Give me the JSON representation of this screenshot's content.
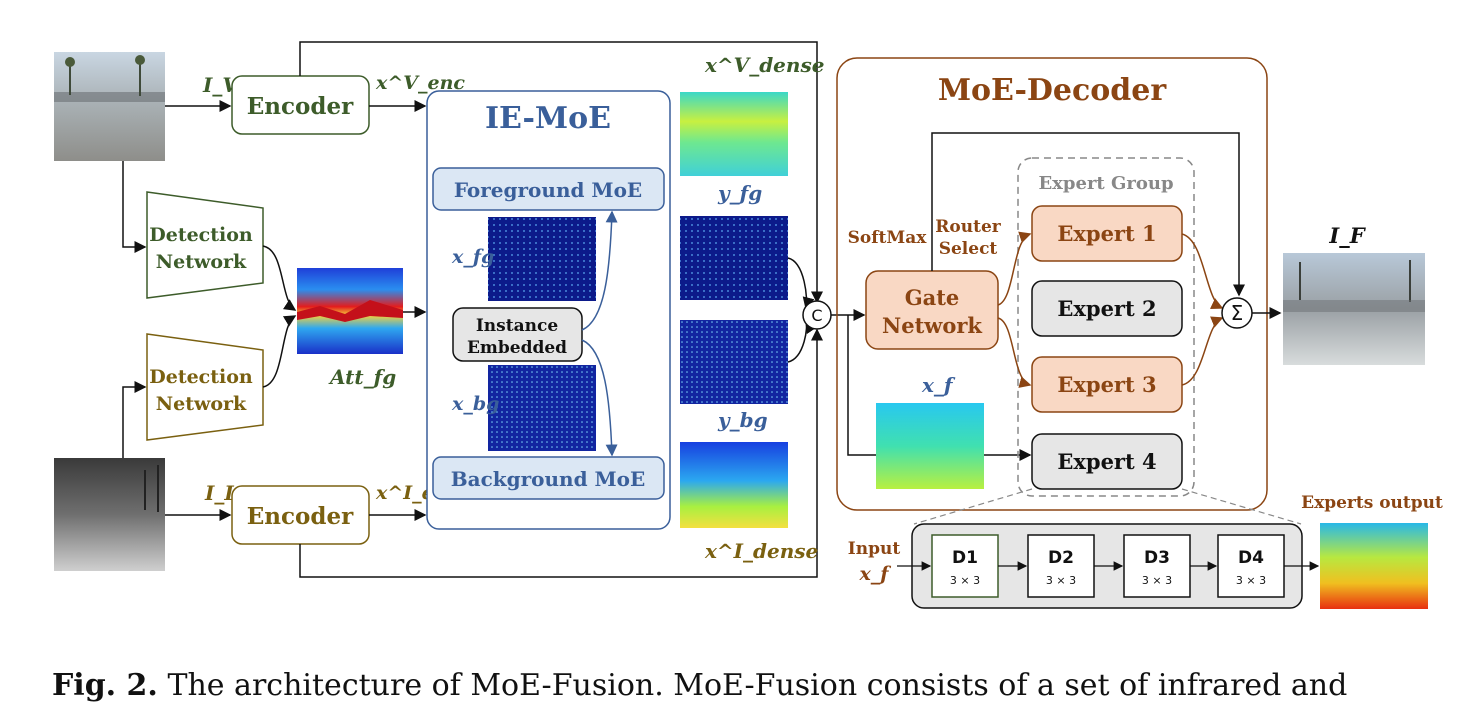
{
  "inputs": {
    "visible_label": "I_V",
    "infrared_label": "I_I",
    "output_label": "I_F"
  },
  "encoders": {
    "visible": "Encoder",
    "infrared": "Encoder",
    "visible_out": "x^V_enc",
    "infrared_out": "x^I_enc"
  },
  "detection": {
    "top_line1": "Detection",
    "top_line2": "Network",
    "bottom_line1": "Detection",
    "bottom_line2": "Network",
    "att_label": "Att_fg"
  },
  "ie_moe": {
    "title": "IE-MoE",
    "foreground": "Foreground MoE",
    "background": "Background MoE",
    "instance_line1": "Instance",
    "instance_line2": "Embedded",
    "x_fg": "x_fg",
    "x_bg": "x_bg"
  },
  "features": {
    "x_dense_v": "x^V_dense",
    "y_fg": "y_fg",
    "y_bg": "y_bg",
    "x_dense_i": "x^I_dense",
    "concat": "C",
    "x_f": "x_f"
  },
  "decoder": {
    "title": "MoE-Decoder",
    "softmax": "SoftMax",
    "router_line1": "Router",
    "router_line2": "Select",
    "gate_line1": "Gate",
    "gate_line2": "Network",
    "expert_group": "Expert Group",
    "experts": [
      "Expert 1",
      "Expert 2",
      "Expert 3",
      "Expert 4"
    ],
    "sum": "Σ"
  },
  "expert_detail": {
    "input_line1": "Input",
    "input_line2": "x_f",
    "blocks": [
      {
        "name": "D1",
        "kernel": "3 × 3"
      },
      {
        "name": "D2",
        "kernel": "3 × 3"
      },
      {
        "name": "D3",
        "kernel": "3 × 3"
      },
      {
        "name": "D4",
        "kernel": "3 × 3"
      }
    ],
    "output_label": "Experts output"
  },
  "caption": {
    "label": "Fig. 2.",
    "text": "The architecture of MoE-Fusion. MoE-Fusion consists of a set of infrared and"
  },
  "colors": {
    "green": "#3d5c2a",
    "olive": "#7a6010",
    "blue": "#3a5f9a",
    "brown": "#8b4513",
    "orange_fill": "#f9d8c4",
    "blue_fill": "#dbe7f4"
  }
}
